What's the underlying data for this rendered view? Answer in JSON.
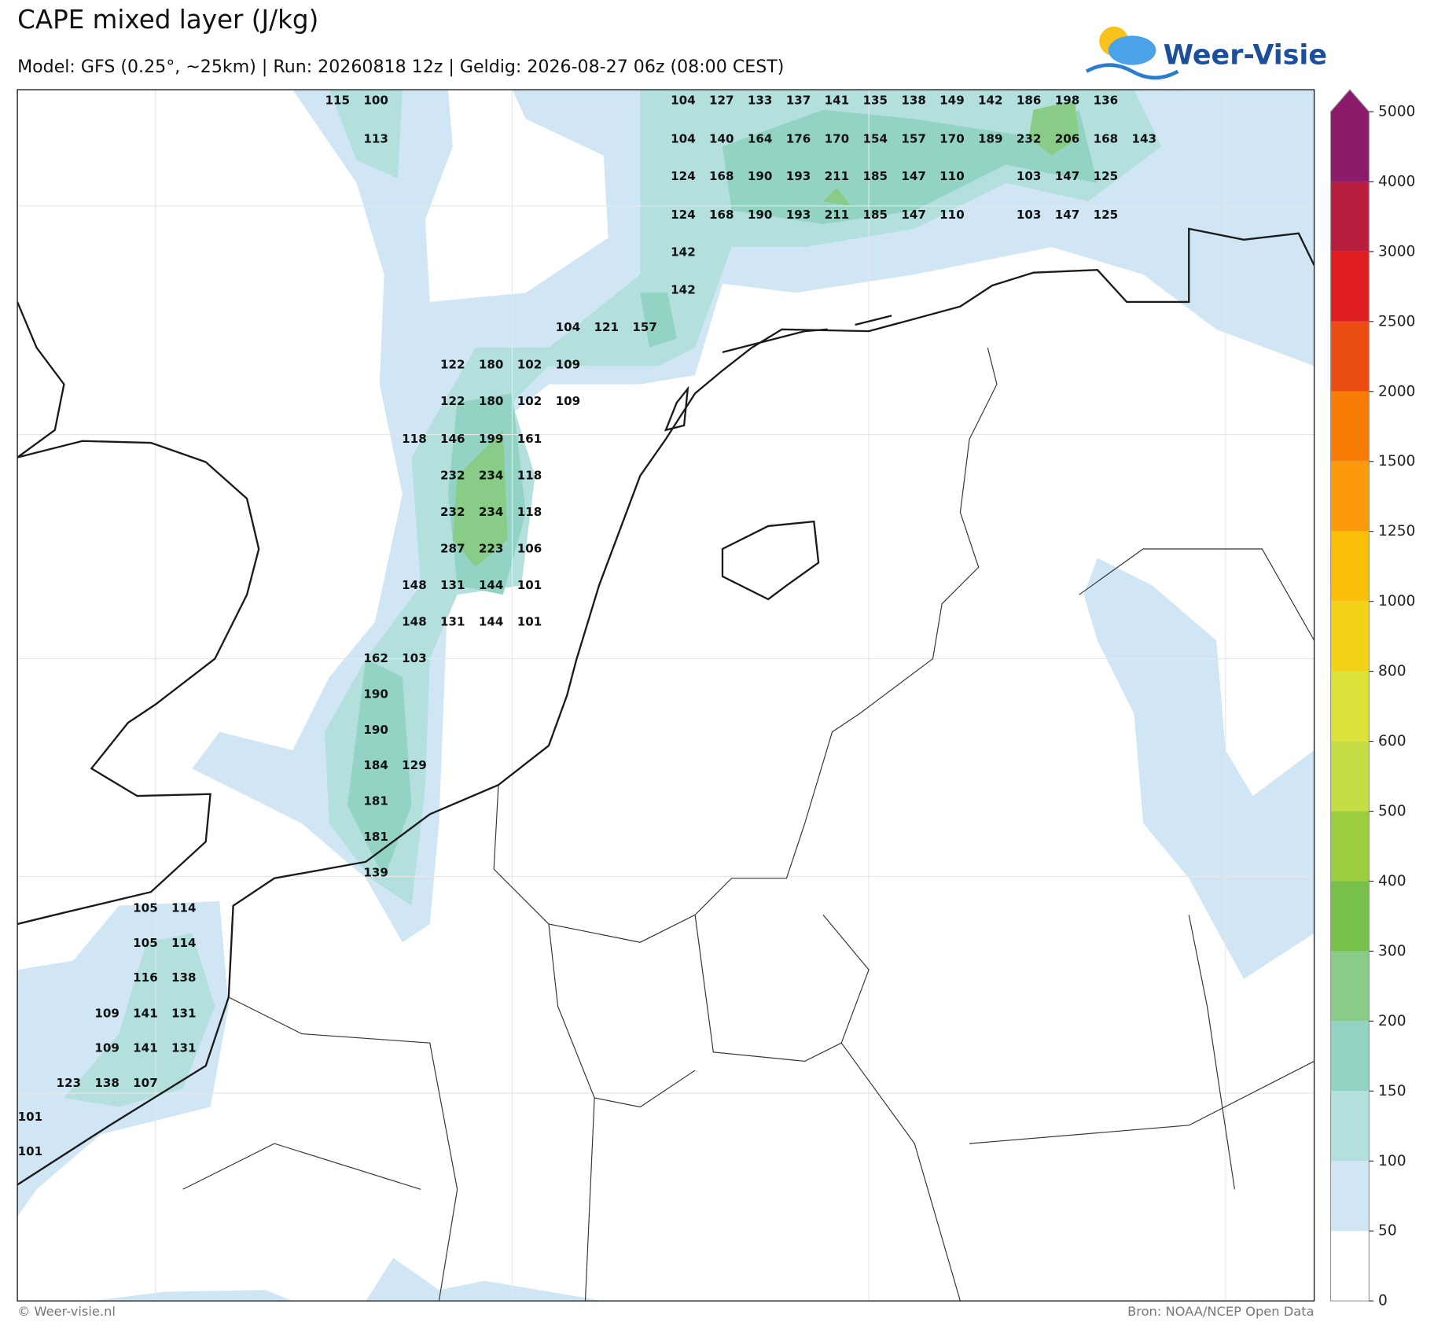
{
  "header": {
    "title": "CAPE mixed layer (J/kg)",
    "subtitle": "Model: GFS (0.25°, ~25km)  |  Run: 20260818 12z  |  Geldig: 2026-08-27 06z (08:00 CEST)",
    "logo": "Weer-Visie"
  },
  "colorbar": {
    "ticks": [
      0,
      50,
      100,
      150,
      200,
      300,
      400,
      500,
      600,
      800,
      1000,
      1250,
      1500,
      2000,
      2500,
      3000,
      4000,
      5000
    ],
    "colors": [
      "#ffffff",
      "#d0e6f5",
      "#b3e0dd",
      "#93d3c4",
      "#88cc88",
      "#77c04a",
      "#9bcf3f",
      "#c5dc45",
      "#dde23b",
      "#f2d31a",
      "#fbbf0a",
      "#fa9a0c",
      "#f77d07",
      "#ec4d13",
      "#df1f1f",
      "#b81e3e",
      "#8b1a6b",
      "#8b1a6b"
    ]
  },
  "map_labels": [
    [
      115,
      100,
      104,
      127,
      133,
      137,
      141,
      135,
      138,
      149,
      142,
      186,
      198,
      136
    ],
    [
      113,
      104,
      140,
      164,
      176,
      170,
      154,
      157,
      170,
      189,
      232,
      206,
      168,
      143
    ],
    [
      124,
      168,
      190,
      193,
      211,
      185,
      147,
      110,
      103,
      147,
      125
    ],
    [
      124,
      168,
      190,
      193,
      211,
      185,
      147,
      110,
      103,
      147,
      125
    ],
    [
      142
    ],
    [
      142
    ],
    [
      104,
      121,
      157
    ],
    [
      122,
      180,
      102,
      109
    ],
    [
      122,
      180,
      102,
      109
    ],
    [
      118,
      146,
      199,
      161
    ],
    [
      232,
      234,
      118
    ],
    [
      232,
      234,
      118
    ],
    [
      287,
      223,
      106
    ],
    [
      148,
      131,
      144,
      101
    ],
    [
      148,
      131,
      144,
      101
    ],
    [
      162,
      103
    ],
    [
      190
    ],
    [
      190
    ],
    [
      184,
      129
    ],
    [
      181
    ],
    [
      181
    ],
    [
      139
    ],
    [
      105,
      114
    ],
    [
      105,
      114
    ],
    [
      116,
      138
    ],
    [
      109,
      141,
      131
    ],
    [
      109,
      141,
      131
    ],
    [
      123,
      138,
      107
    ],
    [
      101
    ],
    [
      101
    ]
  ],
  "footer": {
    "left": "© Weer-visie.nl",
    "right": "Bron: NOAA/NCEP Open Data"
  }
}
